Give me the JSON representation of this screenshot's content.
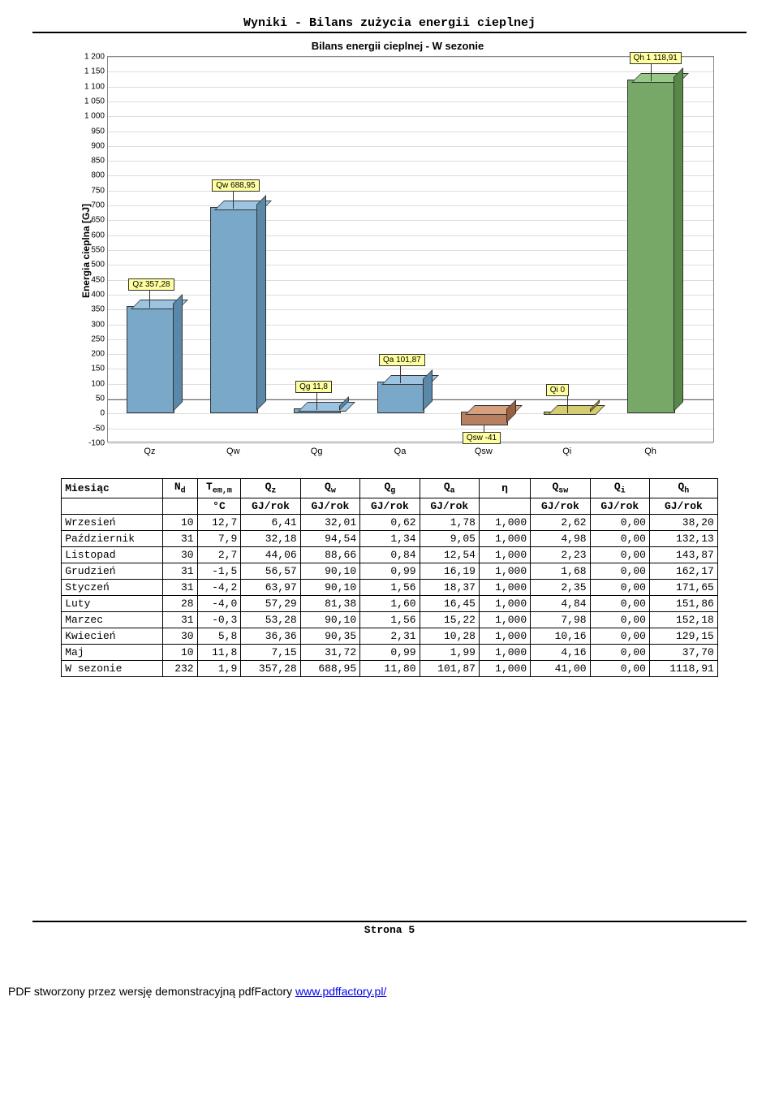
{
  "page_title": "Wyniki - Bilans zużycia energii cieplnej",
  "chart": {
    "title": "Bilans energii cieplnej - W sezonie",
    "ylabel": "Energia cieplna [GJ]",
    "ylim_min": -100,
    "ylim_max": 1200,
    "ytick_step": 50,
    "categories": [
      "Qz",
      "Qw",
      "Qg",
      "Qa",
      "Qsw",
      "Qi",
      "Qh"
    ],
    "values": [
      357.28,
      688.95,
      11.8,
      101.87,
      -41,
      0,
      1118.91
    ],
    "labels": [
      "Qz 357,28",
      "Qw 688,95",
      "Qg 11,8",
      "Qa 101,87",
      "Qsw -41",
      "Qi 0",
      "Qh 1 118,91"
    ],
    "bar_colors": [
      "#7aa8c8",
      "#7aa8c8",
      "#7aa8c8",
      "#7aa8c8",
      "#b88060",
      "#b8b050",
      "#78a868"
    ],
    "bar_top_colors": [
      "#9cc4e0",
      "#9cc4e0",
      "#9cc4e0",
      "#9cc4e0",
      "#d4a080",
      "#d4cc70",
      "#98c888"
    ],
    "bar_side_colors": [
      "#5a88a8",
      "#5a88a8",
      "#5a88a8",
      "#5a88a8",
      "#986040",
      "#989030",
      "#588848"
    ],
    "callout_bg": "#ffffa0",
    "grid_color": "#dddddd",
    "background": "#ffffff"
  },
  "table": {
    "columns": [
      "Miesiąc",
      "Nd",
      "Tem,m",
      "Qz",
      "Qw",
      "Qg",
      "Qa",
      "η",
      "Qsw",
      "Qi",
      "Qh"
    ],
    "unit_row": [
      "",
      "",
      "°C",
      "GJ/rok",
      "GJ/rok",
      "GJ/rok",
      "GJ/rok",
      "",
      "GJ/rok",
      "GJ/rok",
      "GJ/rok"
    ],
    "rows": [
      [
        "Wrzesień",
        "10",
        "12,7",
        "6,41",
        "32,01",
        "0,62",
        "1,78",
        "1,000",
        "2,62",
        "0,00",
        "38,20"
      ],
      [
        "Październik",
        "31",
        "7,9",
        "32,18",
        "94,54",
        "1,34",
        "9,05",
        "1,000",
        "4,98",
        "0,00",
        "132,13"
      ],
      [
        "Listopad",
        "30",
        "2,7",
        "44,06",
        "88,66",
        "0,84",
        "12,54",
        "1,000",
        "2,23",
        "0,00",
        "143,87"
      ],
      [
        "Grudzień",
        "31",
        "-1,5",
        "56,57",
        "90,10",
        "0,99",
        "16,19",
        "1,000",
        "1,68",
        "0,00",
        "162,17"
      ],
      [
        "Styczeń",
        "31",
        "-4,2",
        "63,97",
        "90,10",
        "1,56",
        "18,37",
        "1,000",
        "2,35",
        "0,00",
        "171,65"
      ],
      [
        "Luty",
        "28",
        "-4,0",
        "57,29",
        "81,38",
        "1,60",
        "16,45",
        "1,000",
        "4,84",
        "0,00",
        "151,86"
      ],
      [
        "Marzec",
        "31",
        "-0,3",
        "53,28",
        "90,10",
        "1,56",
        "15,22",
        "1,000",
        "7,98",
        "0,00",
        "152,18"
      ],
      [
        "Kwiecień",
        "30",
        "5,8",
        "36,36",
        "90,35",
        "2,31",
        "10,28",
        "1,000",
        "10,16",
        "0,00",
        "129,15"
      ],
      [
        "Maj",
        "10",
        "11,8",
        "7,15",
        "31,72",
        "0,99",
        "1,99",
        "1,000",
        "4,16",
        "0,00",
        "37,70"
      ],
      [
        "W sezonie",
        "232",
        "1,9",
        "357,28",
        "688,95",
        "11,80",
        "101,87",
        "1,000",
        "41,00",
        "0,00",
        "1118,91"
      ]
    ]
  },
  "page_number": "Strona 5",
  "footer_text": "PDF stworzony przez wersję demonstracyjną pdfFactory ",
  "footer_link": "www.pdffactory.pl/"
}
